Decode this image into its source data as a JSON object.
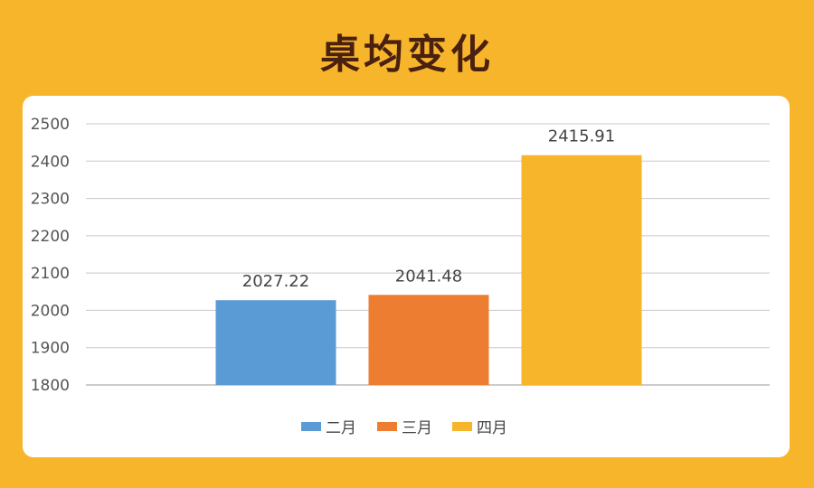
{
  "title": "桌均变化",
  "chart_data": {
    "type": "bar",
    "categories": [
      "二月",
      "三月",
      "四月"
    ],
    "values": [
      2027.22,
      2041.48,
      2415.91
    ],
    "data_labels": [
      "2027.22",
      "2041.48",
      "2415.91"
    ],
    "colors": [
      "#5B9BD5",
      "#ED7D31",
      "#F7B52C"
    ],
    "ylim": [
      1800,
      2500
    ],
    "yticks": [
      1800,
      1900,
      2000,
      2100,
      2200,
      2300,
      2400,
      2500
    ],
    "grid": true,
    "legend": "bottom-center",
    "title": "",
    "xlabel": "",
    "ylabel": ""
  }
}
